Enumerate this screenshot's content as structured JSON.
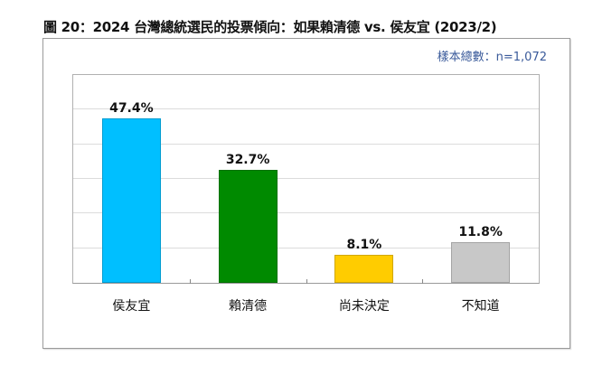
{
  "title": "圖 20：2024 台灣總統選民的投票傾向：如果賴清德  vs.  侯友宜  (2023/2)",
  "sample_size_label": "樣本總數：n=1,072",
  "colors": {
    "sample_text": "#3a5a9a",
    "bar_hou": "#00bfff",
    "bar_lai": "#008a00",
    "bar_undecided": "#ffcc00",
    "bar_unknown": "#c8c8c8"
  },
  "chart_data": {
    "type": "bar",
    "title": "圖 20：2024 台灣總統選民的投票傾向：如果賴清德  vs.  侯友宜  (2023/2)",
    "subtitle": "樣本總數：n=1,072",
    "categories": [
      "侯友宜",
      "賴清德",
      "尚未決定",
      "不知道"
    ],
    "values": [
      47.4,
      32.7,
      8.1,
      11.8
    ],
    "value_labels": [
      "47.4%",
      "32.7%",
      "8.1%",
      "11.8%"
    ],
    "colors": [
      "#00bfff",
      "#008a00",
      "#ffcc00",
      "#c8c8c8"
    ],
    "xlabel": "",
    "ylabel": "",
    "ylim": [
      0,
      60
    ],
    "gridlines": [
      10,
      20,
      30,
      40,
      50
    ],
    "grid": true,
    "y_axis_ticks_visible": false,
    "legend": "none",
    "unit": "%"
  }
}
